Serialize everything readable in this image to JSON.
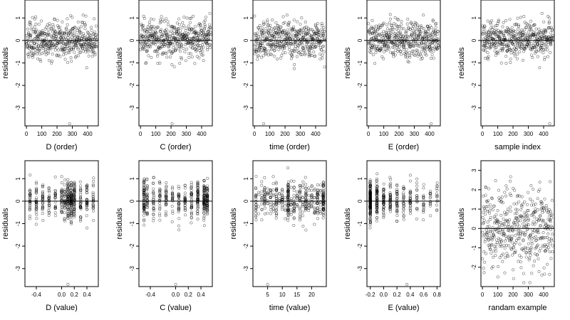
{
  "chart_data": [
    {
      "type": "scatter",
      "xlabel": "D (order)",
      "ylabel": "residuals",
      "xlim": [
        -10,
        470
      ],
      "ylim": [
        -3.8,
        1.8
      ],
      "xticks": [
        0,
        100,
        200,
        300,
        400
      ],
      "xtick_labels": [
        "0",
        "100",
        "200",
        "300",
        "400"
      ],
      "yticks": [
        -3,
        -2,
        -1,
        0,
        1
      ],
      "hline": 0,
      "pattern": "order",
      "seed": 11,
      "outliers": [
        [
          282,
          -3.7
        ]
      ]
    },
    {
      "type": "scatter",
      "xlabel": "C (order)",
      "ylabel": "residuals",
      "xlim": [
        -10,
        470
      ],
      "ylim": [
        -3.8,
        1.8
      ],
      "xticks": [
        0,
        100,
        200,
        300,
        400
      ],
      "xtick_labels": [
        "0",
        "100",
        "200",
        "300",
        "400"
      ],
      "yticks": [
        -3,
        -2,
        -1,
        0,
        1
      ],
      "hline": 0,
      "pattern": "order",
      "seed": 23,
      "outliers": [
        [
          207,
          -3.7
        ]
      ]
    },
    {
      "type": "scatter",
      "xlabel": "time (order)",
      "ylabel": "residuals",
      "xlim": [
        -10,
        470
      ],
      "ylim": [
        -3.8,
        1.8
      ],
      "xticks": [
        0,
        100,
        200,
        300,
        400
      ],
      "xtick_labels": [
        "0",
        "100",
        "200",
        "300",
        "400"
      ],
      "yticks": [
        -3,
        -2,
        -1,
        0,
        1
      ],
      "hline": 0,
      "pattern": "order",
      "seed": 37,
      "outliers": [
        [
          60,
          -3.7
        ]
      ]
    },
    {
      "type": "scatter",
      "xlabel": "E (order)",
      "ylabel": "residuals",
      "xlim": [
        -10,
        470
      ],
      "ylim": [
        -3.8,
        1.8
      ],
      "xticks": [
        0,
        100,
        200,
        300,
        400
      ],
      "xtick_labels": [
        "0",
        "100",
        "200",
        "300",
        "400"
      ],
      "yticks": [
        -3,
        -2,
        -1,
        0,
        1
      ],
      "hline": 0,
      "pattern": "order",
      "seed": 41,
      "outliers": [
        [
          410,
          -3.7
        ]
      ]
    },
    {
      "type": "scatter",
      "xlabel": "sample index",
      "ylabel": "residuals",
      "xlim": [
        -10,
        470
      ],
      "ylim": [
        -3.8,
        1.8
      ],
      "xticks": [
        0,
        100,
        200,
        300,
        400
      ],
      "xtick_labels": [
        "0",
        "100",
        "200",
        "300",
        "400"
      ],
      "yticks": [
        -3,
        -2,
        -1,
        0,
        1
      ],
      "hline": 0,
      "pattern": "order",
      "seed": 53,
      "outliers": [
        [
          440,
          -3.7
        ]
      ]
    },
    {
      "type": "scatter",
      "xlabel": "D (value)",
      "ylabel": "residuals",
      "xlim": [
        -0.58,
        0.58
      ],
      "ylim": [
        -3.8,
        1.8
      ],
      "xticks": [
        -0.4,
        0,
        0.2,
        0.4
      ],
      "xtick_labels": [
        "-0.4",
        "0.0",
        "0.2",
        "0.4"
      ],
      "yticks": [
        -3,
        -2,
        -1,
        0,
        1
      ],
      "hline": 0,
      "pattern": "value",
      "x_levels": [
        -0.5,
        -0.4,
        -0.3,
        -0.2,
        -0.1,
        0,
        0.05,
        0.1,
        0.15,
        0.2,
        0.3,
        0.4,
        0.5
      ],
      "level_weights": [
        2,
        2,
        2,
        2,
        2,
        2,
        2,
        4,
        6,
        4,
        2,
        2,
        2
      ],
      "seed": 61,
      "outliers": [
        [
          0.1,
          -3.7
        ]
      ]
    },
    {
      "type": "scatter",
      "xlabel": "C (value)",
      "ylabel": "residuals",
      "xlim": [
        -0.58,
        0.58
      ],
      "ylim": [
        -3.8,
        1.8
      ],
      "xticks": [
        -0.4,
        0,
        0.2,
        0.4
      ],
      "xtick_labels": [
        "-0.4",
        "0.0",
        "0.2",
        "0.4"
      ],
      "yticks": [
        -3,
        -2,
        -1,
        0,
        1
      ],
      "hline": 0,
      "pattern": "value",
      "x_levels": [
        -0.5,
        -0.45,
        -0.35,
        -0.25,
        -0.15,
        -0.05,
        0.05,
        0.15,
        0.25,
        0.35,
        0.45,
        0.5
      ],
      "level_weights": [
        5,
        3,
        2,
        2,
        2,
        2,
        2,
        2,
        2,
        3,
        5,
        4
      ],
      "seed": 71,
      "outliers": [
        [
          0.0,
          -3.7
        ]
      ]
    },
    {
      "type": "scatter",
      "xlabel": "time (value)",
      "ylabel": "residuals",
      "xlim": [
        0,
        25
      ],
      "ylim": [
        -3.8,
        1.8
      ],
      "xticks": [
        5,
        10,
        15,
        20
      ],
      "xtick_labels": [
        "5",
        "10",
        "15",
        "20"
      ],
      "yticks": [
        -3,
        -2,
        -1,
        0,
        1
      ],
      "hline": 0,
      "pattern": "value",
      "x_levels": [
        1,
        2,
        3,
        4,
        5,
        6,
        7,
        8,
        9,
        10,
        11,
        12,
        13,
        14,
        15,
        16,
        17,
        18,
        19,
        20,
        21,
        22,
        23,
        24
      ],
      "level_weights": [
        2,
        1,
        1,
        2,
        1,
        2,
        1,
        3,
        1,
        2,
        1,
        6,
        1,
        2,
        1,
        2,
        1,
        3,
        1,
        2,
        1,
        2,
        1,
        6
      ],
      "seed": 83,
      "outliers": [
        [
          5,
          -3.7
        ]
      ]
    },
    {
      "type": "scatter",
      "xlabel": "E (value)",
      "ylabel": "residuals",
      "xlim": [
        -0.25,
        0.85
      ],
      "ylim": [
        -3.8,
        1.8
      ],
      "xticks": [
        -0.2,
        0,
        0.2,
        0.4,
        0.6,
        0.8
      ],
      "xtick_labels": [
        "-0.2",
        "0.0",
        "0.2",
        "0.4",
        "0.6",
        "0.8"
      ],
      "yticks": [
        -3,
        -2,
        -1,
        0,
        1
      ],
      "hline": 0,
      "pattern": "value",
      "x_levels": [
        -0.2,
        -0.1,
        0,
        0.1,
        0.2,
        0.3,
        0.4,
        0.5,
        0.6,
        0.7,
        0.8
      ],
      "level_weights": [
        14,
        6,
        4,
        3,
        3,
        2,
        2,
        1,
        1,
        1,
        1
      ],
      "seed": 97,
      "outliers": [
        [
          0.35,
          -3.7
        ]
      ]
    },
    {
      "type": "scatter",
      "xlabel": "randam example",
      "ylabel": "residuals",
      "xlim": [
        -10,
        470
      ],
      "ylim": [
        -3.0,
        3.5
      ],
      "xticks": [
        0,
        100,
        200,
        300,
        400
      ],
      "xtick_labels": [
        "0",
        "100",
        "200",
        "300",
        "400"
      ],
      "yticks": [
        -2,
        -1,
        0,
        1,
        2,
        3
      ],
      "hline": 0,
      "pattern": "random",
      "seed": 101,
      "outliers": []
    }
  ]
}
